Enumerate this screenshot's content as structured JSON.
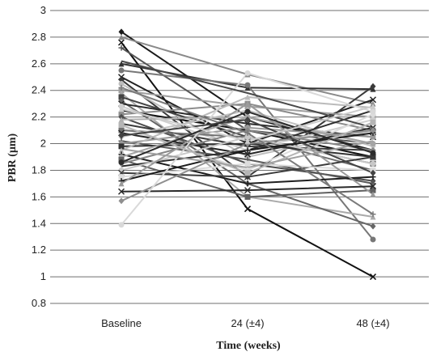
{
  "chart_data": {
    "type": "line",
    "xlabel": "Time (weeks)",
    "ylabel": "PBR (μm)",
    "categories": [
      "Baseline",
      "24 (±4)",
      "48 (±4)"
    ],
    "ylim": [
      0.8,
      3.0
    ],
    "yticks": [
      0.8,
      1.0,
      1.2,
      1.4,
      1.6,
      1.8,
      2.0,
      2.2,
      2.4,
      2.6,
      2.8,
      3.0
    ],
    "ytick_labels": [
      "0.8",
      "1",
      "1.2",
      "1.4",
      "1.6",
      "1.8",
      "2",
      "2.2",
      "2.4",
      "2.6",
      "2.8",
      "3"
    ],
    "grid": true,
    "legend": "none",
    "series": [
      {
        "values": [
          2.84,
          2.2,
          1.95
        ],
        "color": "#1a1a1a",
        "marker": "diamond"
      },
      {
        "values": [
          2.76,
          1.51,
          1.0
        ],
        "color": "#111111",
        "marker": "x"
      },
      {
        "values": [
          2.8,
          2.52,
          2.3
        ],
        "color": "#8a8a8a",
        "marker": "triangle"
      },
      {
        "values": [
          2.72,
          2.1,
          2.0
        ],
        "color": "#555555",
        "marker": "plus"
      },
      {
        "values": [
          2.6,
          2.42,
          2.41
        ],
        "color": "#333333",
        "marker": "triangle"
      },
      {
        "values": [
          2.55,
          2.44,
          1.28
        ],
        "color": "#777777",
        "marker": "circle"
      },
      {
        "values": [
          2.5,
          2.0,
          2.33
        ],
        "color": "#222222",
        "marker": "x"
      },
      {
        "values": [
          2.48,
          1.75,
          2.43
        ],
        "color": "#3a3a3a",
        "marker": "diamond"
      },
      {
        "values": [
          2.45,
          1.9,
          2.1
        ],
        "color": "#bdbdbd",
        "marker": "circle"
      },
      {
        "values": [
          2.4,
          2.28,
          2.2
        ],
        "color": "#9e9e9e",
        "marker": "square"
      },
      {
        "values": [
          2.38,
          1.6,
          1.45
        ],
        "color": "#aaaaaa",
        "marker": "triangle"
      },
      {
        "values": [
          2.35,
          2.05,
          1.85
        ],
        "color": "#444444",
        "marker": "square"
      },
      {
        "values": [
          2.32,
          1.7,
          1.38
        ],
        "color": "#666666",
        "marker": "diamond"
      },
      {
        "values": [
          2.3,
          2.15,
          2.05
        ],
        "color": "#2b2b2b",
        "marker": "x"
      },
      {
        "values": [
          2.28,
          1.95,
          2.18
        ],
        "color": "#cfcfcf",
        "marker": "circle"
      },
      {
        "values": [
          2.25,
          2.1,
          1.9
        ],
        "color": "#111111",
        "marker": "none"
      },
      {
        "values": [
          2.22,
          2.3,
          2.1
        ],
        "color": "#8c8c8c",
        "marker": "square"
      },
      {
        "values": [
          2.2,
          1.85,
          1.72
        ],
        "color": "#4d4d4d",
        "marker": "diamond"
      },
      {
        "values": [
          2.18,
          2.2,
          2.0
        ],
        "color": "#b0b0b0",
        "marker": "triangle"
      },
      {
        "values": [
          2.15,
          1.98,
          1.95
        ],
        "color": "#3d3d3d",
        "marker": "none"
      },
      {
        "values": [
          2.12,
          1.8,
          2.22
        ],
        "color": "#dddddd",
        "marker": "circle"
      },
      {
        "values": [
          2.1,
          2.05,
          1.8
        ],
        "color": "#707070",
        "marker": "square"
      },
      {
        "values": [
          2.08,
          1.92,
          2.12
        ],
        "color": "#262626",
        "marker": "x"
      },
      {
        "values": [
          2.05,
          2.25,
          1.98
        ],
        "color": "#c2c2c2",
        "marker": "diamond"
      },
      {
        "values": [
          2.02,
          1.88,
          1.7
        ],
        "color": "#5a5a5a",
        "marker": "plus"
      },
      {
        "values": [
          2.0,
          2.12,
          2.05
        ],
        "color": "#999999",
        "marker": "circle"
      },
      {
        "values": [
          1.98,
          2.0,
          1.9
        ],
        "color": "#333333",
        "marker": "square"
      },
      {
        "values": [
          1.95,
          2.35,
          2.27
        ],
        "color": "#bbbbbb",
        "marker": "triangle"
      },
      {
        "values": [
          1.92,
          1.7,
          1.75
        ],
        "color": "#1f1f1f",
        "marker": "plus"
      },
      {
        "values": [
          1.9,
          2.2,
          2.0
        ],
        "color": "#a5a5a5",
        "marker": "circle"
      },
      {
        "values": [
          1.88,
          1.6,
          1.65
        ],
        "color": "#616161",
        "marker": "square"
      },
      {
        "values": [
          1.85,
          2.1,
          1.95
        ],
        "color": "#878787",
        "marker": "diamond"
      },
      {
        "values": [
          1.83,
          1.95,
          2.25
        ],
        "color": "#2e2e2e",
        "marker": "none"
      },
      {
        "values": [
          1.8,
          2.05,
          1.85
        ],
        "color": "#c8c8c8",
        "marker": "circle"
      },
      {
        "values": [
          1.78,
          1.75,
          1.9
        ],
        "color": "#3b3b3b",
        "marker": "x"
      },
      {
        "values": [
          1.75,
          1.85,
          1.8
        ],
        "color": "#dcdcdc",
        "marker": "square"
      },
      {
        "values": [
          1.72,
          1.95,
          2.08
        ],
        "color": "#1c1c1c",
        "marker": "plus"
      },
      {
        "values": [
          1.7,
          2.3,
          1.62
        ],
        "color": "#9a9a9a",
        "marker": "triangle"
      },
      {
        "values": [
          1.64,
          1.65,
          1.68
        ],
        "color": "#2a2a2a",
        "marker": "x"
      },
      {
        "values": [
          1.57,
          2.0,
          2.1
        ],
        "color": "#8f8f8f",
        "marker": "diamond"
      },
      {
        "values": [
          1.39,
          2.53,
          2.24
        ],
        "color": "#d9d9d9",
        "marker": "circle"
      },
      {
        "values": [
          2.62,
          2.38,
          2.12
        ],
        "color": "#4a4a4a",
        "marker": "none"
      },
      {
        "values": [
          2.42,
          2.08,
          1.47
        ],
        "color": "#7a7a7a",
        "marker": "plus"
      },
      {
        "values": [
          2.14,
          1.78,
          2.16
        ],
        "color": "#b5b5b5",
        "marker": "square"
      },
      {
        "values": [
          2.06,
          2.18,
          1.78
        ],
        "color": "#434343",
        "marker": "diamond"
      },
      {
        "values": [
          1.96,
          1.82,
          2.02
        ],
        "color": "#a0a0a0",
        "marker": "none"
      },
      {
        "values": [
          1.86,
          2.24,
          1.93
        ],
        "color": "#2c2c2c",
        "marker": "circle"
      },
      {
        "values": [
          2.26,
          2.02,
          2.28
        ],
        "color": "#cccccc",
        "marker": "triangle"
      }
    ]
  }
}
